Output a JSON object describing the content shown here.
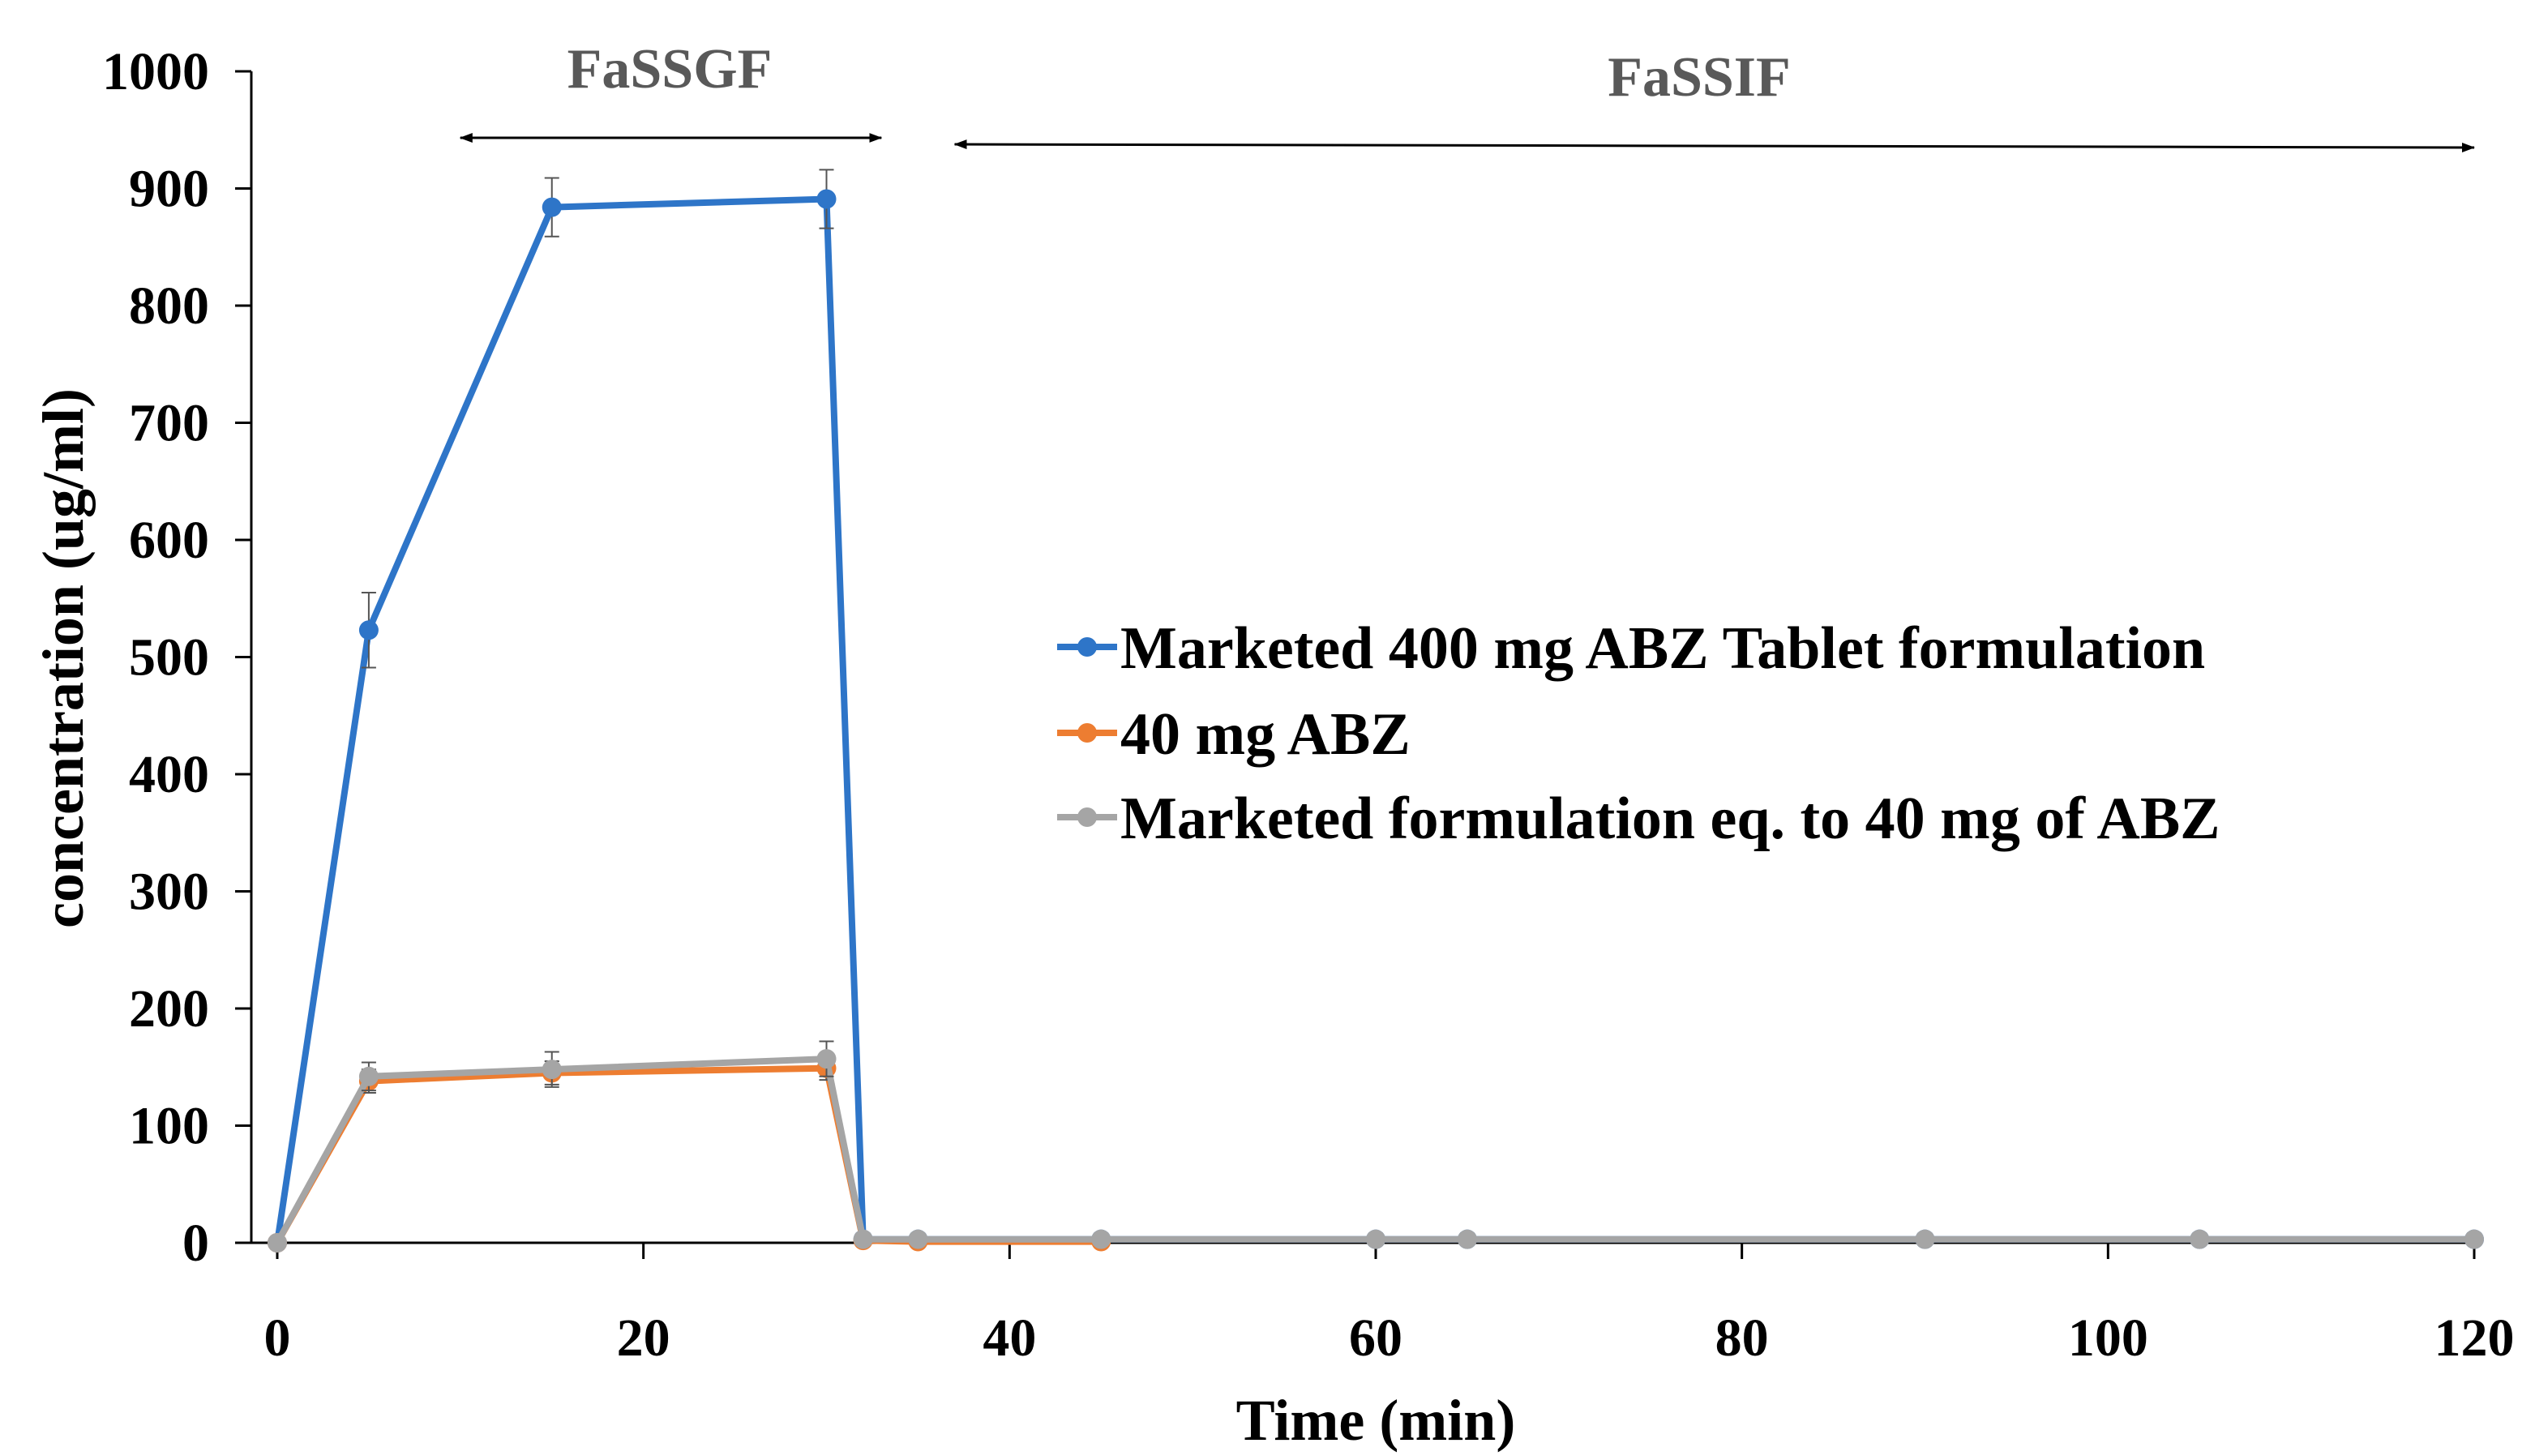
{
  "chart_data": {
    "type": "line",
    "title": "",
    "xlabel": "Time (min)",
    "ylabel": "concentration (ug/ml)",
    "xlim": [
      0,
      120
    ],
    "ylim": [
      0,
      1000
    ],
    "xticks": [
      "0",
      "20",
      "40",
      "60",
      "80",
      "100",
      "120"
    ],
    "yticks": [
      "0",
      "100",
      "200",
      "300",
      "400",
      "500",
      "600",
      "700",
      "800",
      "900",
      "1000"
    ],
    "grid": false,
    "legend_position": "center-right",
    "annotations": [
      {
        "label": "FaSSGF",
        "x_start": 10,
        "x_end": 33
      },
      {
        "label": "FaSSIF",
        "x_start": 37,
        "x_end": 120
      }
    ],
    "series": [
      {
        "name": "Marketed 400 mg ABZ Tablet formulation",
        "color": "#2E75C8",
        "x": [
          0,
          5,
          15,
          30,
          32,
          35,
          45,
          60,
          65,
          90,
          105,
          120
        ],
        "y": [
          0,
          523,
          884,
          891,
          3,
          3,
          3,
          3,
          3,
          3,
          3,
          3
        ],
        "err": [
          0,
          32,
          25,
          25,
          0,
          0,
          0,
          0,
          0,
          0,
          0,
          0
        ]
      },
      {
        "name": "40 mg ABZ",
        "color": "#ED7D31",
        "x": [
          0,
          5,
          15,
          30,
          32,
          35,
          45
        ],
        "y": [
          0,
          138,
          145,
          149,
          2,
          1,
          1
        ],
        "err": [
          0,
          10,
          10,
          10,
          0,
          0,
          0
        ]
      },
      {
        "name": "Marketed formulation eq. to 40 mg of ABZ",
        "color": "#A5A5A5",
        "x": [
          0,
          5,
          15,
          30,
          32,
          35,
          45,
          60,
          65,
          90,
          105,
          120
        ],
        "y": [
          0,
          142,
          148,
          157,
          3,
          3,
          3,
          3,
          3,
          3,
          3,
          3
        ],
        "err": [
          0,
          12,
          15,
          15,
          0,
          0,
          0,
          0,
          0,
          0,
          0,
          0
        ]
      }
    ]
  }
}
